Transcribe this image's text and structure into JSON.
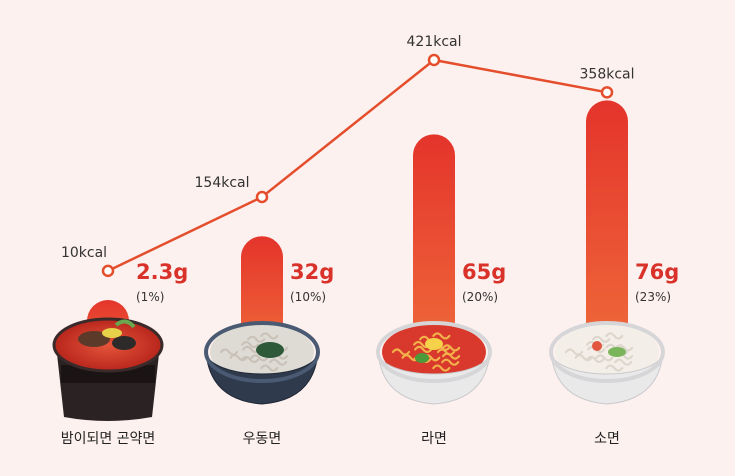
{
  "chart_data": {
    "type": "bar+line",
    "categories": [
      "밤이되면 곤약면",
      "우동면",
      "라면",
      "소면"
    ],
    "series": [
      {
        "name": "",
        "kind": "bar",
        "values": [
          2.3,
          32,
          65,
          76
        ],
        "value_labels": [
          "2.3g",
          "32g",
          "65g",
          "76g"
        ],
        "percent_labels": [
          "(1%)",
          "(10%)",
          "(20%)",
          "(23%)"
        ]
      },
      {
        "name": "",
        "kind": "line",
        "values": [
          10,
          154,
          421,
          358
        ],
        "value_labels": [
          "10kcal",
          "154kcal",
          "421kcal",
          "358kcal"
        ]
      }
    ],
    "bar_ylim": [
      0,
      80
    ],
    "line_ylim": [
      0,
      450
    ],
    "grid": false,
    "colors": {
      "bar_top": "#e4342b",
      "bar_bottom": "#ef6a3a",
      "line": "#e44e2c",
      "marker_fill": "#ffffff",
      "value_text": "#d8322a"
    },
    "icons": [
      "konjac-noodle-cup-icon",
      "udon-bowl-icon",
      "ramen-bowl-icon",
      "somen-bowl-icon"
    ]
  }
}
